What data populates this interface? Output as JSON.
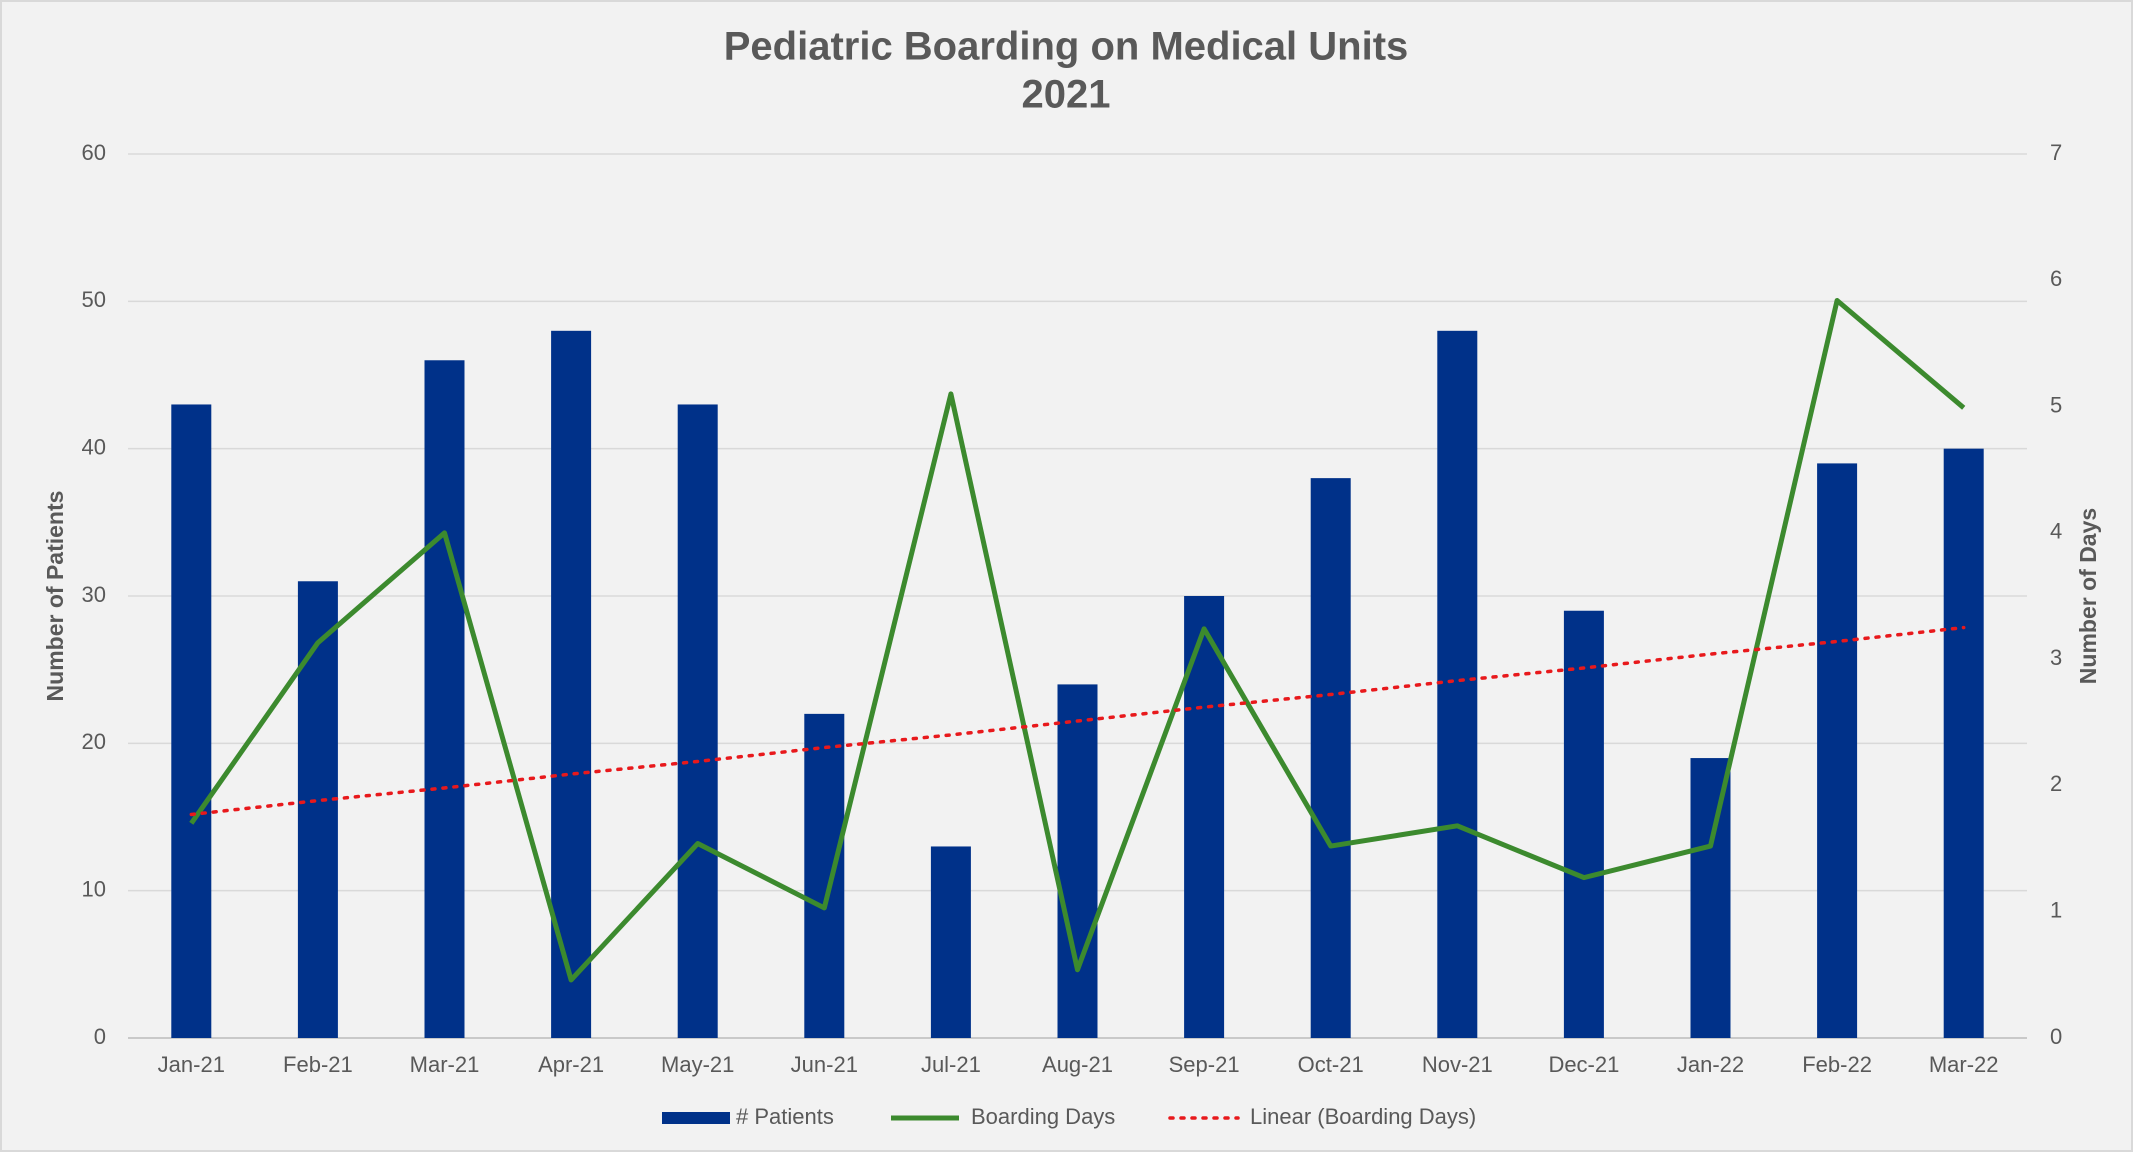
{
  "chart_data": {
    "type": "bar",
    "title": "Pediatric Boarding on Medical Units",
    "subtitle": "2021",
    "y_label": "Number of Patients",
    "y2_label": "Number of Days",
    "categories": [
      "Jan-21",
      "Feb-21",
      "Mar-21",
      "Apr-21",
      "May-21",
      "Jun-21",
      "Jul-21",
      "Aug-21",
      "Sep-21",
      "Oct-21",
      "Nov-21",
      "Dec-21",
      "Jan-22",
      "Feb-22",
      "Mar-22"
    ],
    "series": [
      {
        "name": "# Patients",
        "type": "bar",
        "color": "#003189",
        "values": [
          43,
          31,
          46,
          48,
          43,
          22,
          13,
          24,
          30,
          38,
          48,
          29,
          19,
          39,
          40
        ]
      },
      {
        "name": "Boarding Days",
        "type": "line",
        "axis": "y2",
        "color": "#3c8a2e",
        "values": [
          1.7,
          3.13,
          4.0,
          0.46,
          1.54,
          1.03,
          5.1,
          0.54,
          3.24,
          1.52,
          1.68,
          1.27,
          1.52,
          5.84,
          4.99
        ]
      },
      {
        "name": "Linear (Boarding Days)",
        "type": "line",
        "dotted": true,
        "axis": "y2",
        "color": "#e8191c",
        "values": [
          1.77,
          1.88,
          1.98,
          2.09,
          2.19,
          2.3,
          2.4,
          2.51,
          2.62,
          2.72,
          2.83,
          2.93,
          3.04,
          3.14,
          3.25
        ]
      }
    ],
    "ylim": [
      0,
      60
    ],
    "yticks": [
      0,
      10,
      20,
      30,
      40,
      50,
      60
    ],
    "y2lim": [
      0,
      7
    ],
    "y2ticks": [
      0,
      1,
      2,
      3,
      4,
      5,
      6,
      7
    ],
    "grid": true,
    "legend": "bottom"
  }
}
